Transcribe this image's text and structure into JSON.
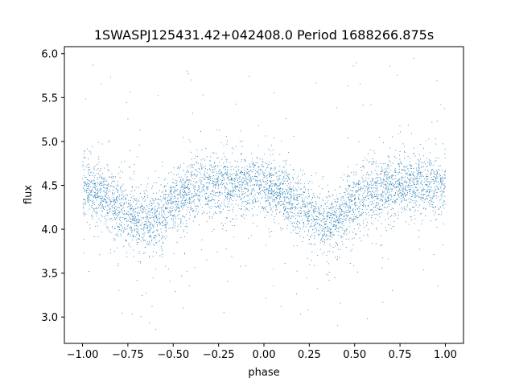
{
  "chart_data": {
    "type": "scatter",
    "title": "1SWASPJ125431.42+042408.0 Period 1688266.875s",
    "xlabel": "phase",
    "ylabel": "flux",
    "xlim": [
      -1.1,
      1.1
    ],
    "ylim": [
      2.7,
      6.08
    ],
    "xticks": [
      {
        "value": -1.0,
        "label": "−1.00"
      },
      {
        "value": -0.75,
        "label": "−0.75"
      },
      {
        "value": -0.5,
        "label": "−0.50"
      },
      {
        "value": -0.25,
        "label": "−0.25"
      },
      {
        "value": 0.0,
        "label": "0.00"
      },
      {
        "value": 0.25,
        "label": "0.25"
      },
      {
        "value": 0.5,
        "label": "0.50"
      },
      {
        "value": 0.75,
        "label": "0.75"
      },
      {
        "value": 1.0,
        "label": "1.00"
      }
    ],
    "yticks": [
      {
        "value": 3.0,
        "label": "3.0"
      },
      {
        "value": 3.5,
        "label": "3.5"
      },
      {
        "value": 4.0,
        "label": "4.0"
      },
      {
        "value": 4.5,
        "label": "4.5"
      },
      {
        "value": 5.0,
        "label": "5.0"
      },
      {
        "value": 5.5,
        "label": "5.5"
      },
      {
        "value": 6.0,
        "label": "6.0"
      }
    ],
    "grid": false,
    "marker_color": "#1f77b4",
    "series": [
      {
        "x_range": [
          -1.0,
          1.0
        ],
        "baseline": [
          [
            -1.0,
            4.5
          ],
          [
            -0.9,
            4.42
          ],
          [
            -0.8,
            4.25
          ],
          [
            -0.7,
            4.08
          ],
          [
            -0.6,
            4.1
          ],
          [
            -0.5,
            4.3
          ],
          [
            -0.4,
            4.43
          ],
          [
            -0.3,
            4.5
          ],
          [
            -0.2,
            4.52
          ],
          [
            -0.1,
            4.5
          ],
          [
            0.0,
            4.5
          ],
          [
            0.1,
            4.42
          ],
          [
            0.2,
            4.25
          ],
          [
            0.3,
            4.08
          ],
          [
            0.4,
            4.1
          ],
          [
            0.5,
            4.3
          ],
          [
            0.6,
            4.43
          ],
          [
            0.7,
            4.5
          ],
          [
            0.8,
            4.52
          ],
          [
            0.9,
            4.5
          ],
          [
            1.0,
            4.5
          ]
        ]
      }
    ]
  }
}
